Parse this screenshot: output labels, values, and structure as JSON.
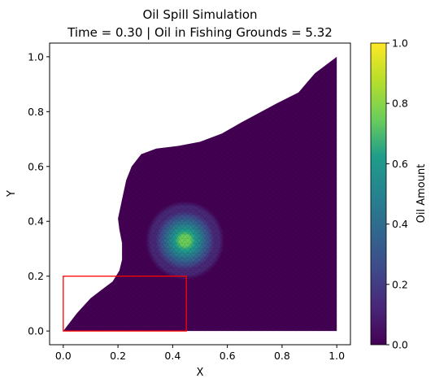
{
  "chart_data": {
    "type": "heatmap",
    "title": "Oil Spill Simulation",
    "subtitle": "Time = 0.30 | Oil in Fishing Grounds = 5.32",
    "xlabel": "X",
    "ylabel": "Y",
    "xlim": [
      -0.05,
      1.05
    ],
    "ylim": [
      -0.05,
      1.05
    ],
    "x_ticks": [
      "0.0",
      "0.2",
      "0.4",
      "0.6",
      "0.8",
      "1.0"
    ],
    "y_ticks": [
      "0.0",
      "0.2",
      "0.4",
      "0.6",
      "0.8",
      "1.0"
    ],
    "colorbar": {
      "label": "Oil Amount",
      "range": [
        0,
        1
      ],
      "ticks": [
        "0.0",
        "0.2",
        "0.4",
        "0.6",
        "0.8",
        "1.0"
      ],
      "colormap": "viridis"
    },
    "oil_blob": {
      "center_x": 0.445,
      "center_y": 0.33,
      "peak": 0.8,
      "radius": 0.18
    },
    "fishing_grounds": {
      "x0": 0.0,
      "y0": 0.0,
      "x1": 0.45,
      "y1": 0.2,
      "color": "#ff0000"
    },
    "domain_boundary": [
      [
        0.0,
        0.0
      ],
      [
        1.0,
        0.0
      ],
      [
        1.0,
        1.0
      ],
      [
        0.92,
        0.94
      ],
      [
        0.86,
        0.87
      ],
      [
        0.78,
        0.83
      ],
      [
        0.65,
        0.76
      ],
      [
        0.58,
        0.72
      ],
      [
        0.5,
        0.69
      ],
      [
        0.42,
        0.675
      ],
      [
        0.34,
        0.665
      ],
      [
        0.285,
        0.645
      ],
      [
        0.25,
        0.6
      ],
      [
        0.23,
        0.55
      ],
      [
        0.215,
        0.48
      ],
      [
        0.2,
        0.41
      ],
      [
        0.205,
        0.37
      ],
      [
        0.215,
        0.32
      ],
      [
        0.215,
        0.26
      ],
      [
        0.205,
        0.22
      ],
      [
        0.18,
        0.18
      ],
      [
        0.14,
        0.15
      ],
      [
        0.1,
        0.12
      ],
      [
        0.05,
        0.065
      ],
      [
        0.0,
        0.0
      ]
    ]
  }
}
